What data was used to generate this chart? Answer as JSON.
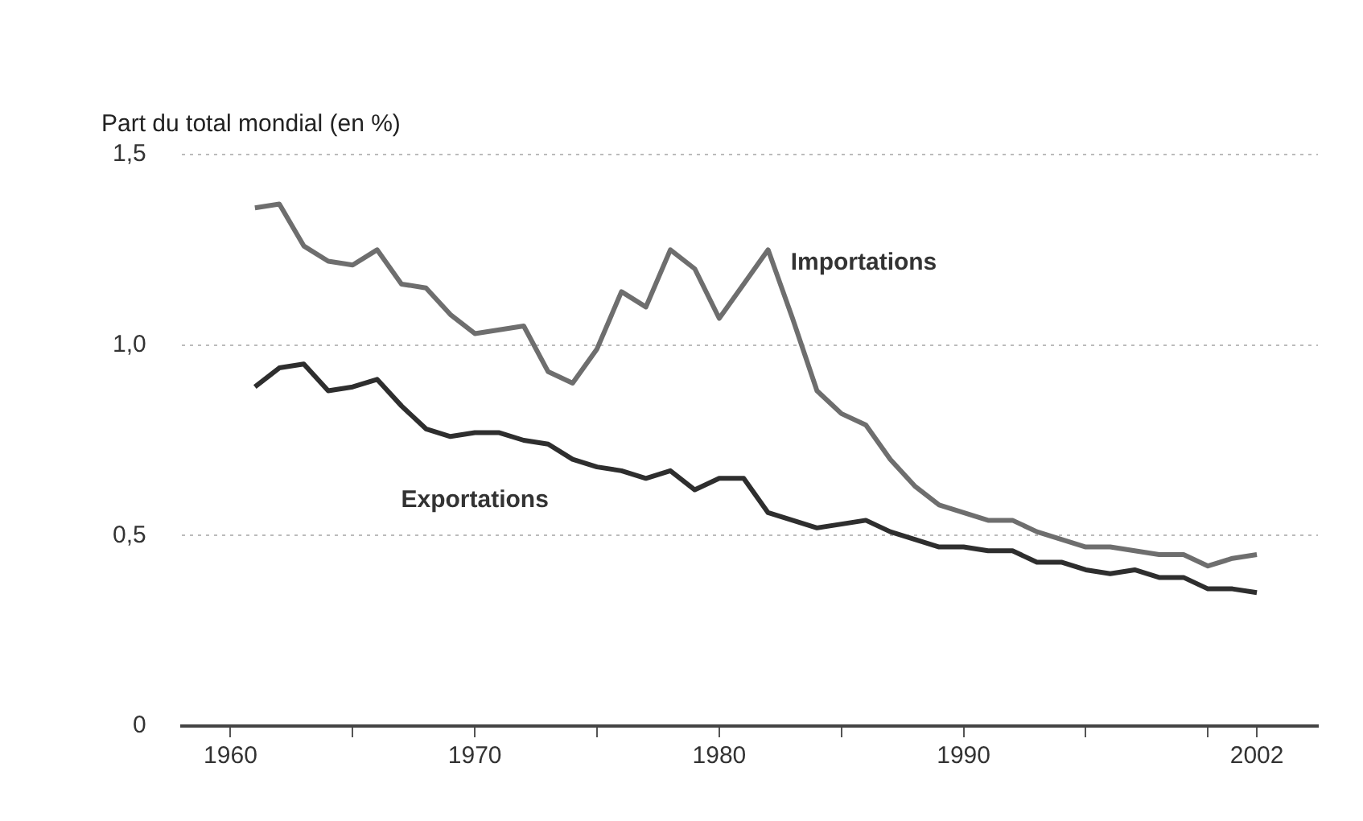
{
  "chart_data": {
    "type": "line",
    "ylabel": "Part du total mondial (en %)",
    "x": [
      1961,
      1962,
      1963,
      1964,
      1965,
      1966,
      1967,
      1968,
      1969,
      1970,
      1971,
      1972,
      1973,
      1974,
      1975,
      1976,
      1977,
      1978,
      1979,
      1980,
      1981,
      1982,
      1983,
      1984,
      1985,
      1986,
      1987,
      1988,
      1989,
      1990,
      1991,
      1992,
      1993,
      1994,
      1995,
      1996,
      1997,
      1998,
      1999,
      2000,
      2001,
      2002
    ],
    "series": [
      {
        "name": "Importations",
        "color": "#6e6e6e",
        "values": [
          1.36,
          1.37,
          1.26,
          1.22,
          1.21,
          1.25,
          1.16,
          1.15,
          1.08,
          1.03,
          1.04,
          1.05,
          0.93,
          0.9,
          0.99,
          1.14,
          1.1,
          1.25,
          1.2,
          1.07,
          1.16,
          1.25,
          1.07,
          0.88,
          0.82,
          0.79,
          0.7,
          0.63,
          0.58,
          0.56,
          0.54,
          0.54,
          0.51,
          0.49,
          0.47,
          0.47,
          0.46,
          0.45,
          0.45,
          0.42,
          0.44,
          0.45
        ]
      },
      {
        "name": "Exportations",
        "color": "#2e2e2e",
        "values": [
          0.89,
          0.94,
          0.95,
          0.88,
          0.89,
          0.91,
          0.84,
          0.78,
          0.76,
          0.77,
          0.77,
          0.75,
          0.74,
          0.7,
          0.68,
          0.67,
          0.65,
          0.67,
          0.62,
          0.65,
          0.65,
          0.56,
          0.54,
          0.52,
          0.53,
          0.54,
          0.51,
          0.49,
          0.47,
          0.47,
          0.46,
          0.46,
          0.43,
          0.43,
          0.41,
          0.4,
          0.41,
          0.39,
          0.39,
          0.36,
          0.36,
          0.35
        ]
      }
    ],
    "xlim": [
      1958,
      2004.5
    ],
    "xticks": [
      {
        "value": 1960,
        "label": "1960"
      },
      {
        "value": 1965,
        "label": null
      },
      {
        "value": 1970,
        "label": "1970"
      },
      {
        "value": 1975,
        "label": null
      },
      {
        "value": 1980,
        "label": "1980"
      },
      {
        "value": 1985,
        "label": null
      },
      {
        "value": 1990,
        "label": "1990"
      },
      {
        "value": 1995,
        "label": null
      },
      {
        "value": 2000,
        "label": null
      },
      {
        "value": 2002,
        "label": "2002"
      }
    ],
    "ylim": [
      0,
      1.5
    ],
    "yticks": [
      {
        "value": 0,
        "label": "0"
      },
      {
        "value": 0.5,
        "label": "0,5"
      },
      {
        "value": 1,
        "label": "1,0"
      },
      {
        "value": 1.5,
        "label": "1,5"
      }
    ],
    "grid": "y",
    "legend": false,
    "marker": "none",
    "line_style": "solid"
  }
}
